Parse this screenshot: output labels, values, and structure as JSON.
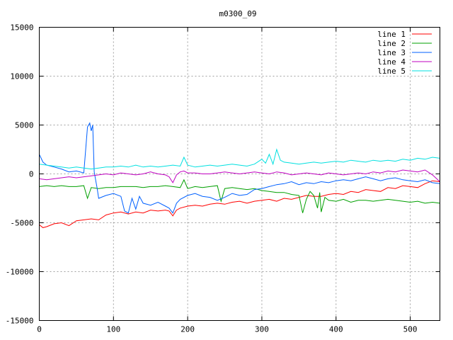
{
  "chart_data": {
    "type": "line",
    "title": "m0300_09",
    "xlabel": "",
    "ylabel": "",
    "xlim": [
      0,
      540
    ],
    "ylim": [
      -15000,
      15000
    ],
    "x_ticks": [
      0,
      100,
      200,
      300,
      400,
      500
    ],
    "y_ticks": [
      -15000,
      -10000,
      -5000,
      0,
      5000,
      10000,
      15000
    ],
    "grid": true,
    "legend_position": "top-right",
    "series": [
      {
        "name": "line 1",
        "color": "#ff0000",
        "points": [
          [
            0,
            -5200
          ],
          [
            5,
            -5500
          ],
          [
            10,
            -5400
          ],
          [
            20,
            -5100
          ],
          [
            30,
            -5000
          ],
          [
            40,
            -5300
          ],
          [
            50,
            -4800
          ],
          [
            60,
            -4700
          ],
          [
            70,
            -4600
          ],
          [
            80,
            -4700
          ],
          [
            90,
            -4200
          ],
          [
            100,
            -4000
          ],
          [
            110,
            -3900
          ],
          [
            120,
            -4100
          ],
          [
            130,
            -3900
          ],
          [
            140,
            -4000
          ],
          [
            150,
            -3700
          ],
          [
            160,
            -3800
          ],
          [
            170,
            -3700
          ],
          [
            175,
            -3800
          ],
          [
            180,
            -4300
          ],
          [
            185,
            -3700
          ],
          [
            190,
            -3500
          ],
          [
            200,
            -3300
          ],
          [
            210,
            -3200
          ],
          [
            220,
            -3300
          ],
          [
            230,
            -3100
          ],
          [
            240,
            -3000
          ],
          [
            250,
            -3100
          ],
          [
            260,
            -2900
          ],
          [
            270,
            -2800
          ],
          [
            280,
            -3000
          ],
          [
            290,
            -2800
          ],
          [
            300,
            -2700
          ],
          [
            310,
            -2600
          ],
          [
            320,
            -2800
          ],
          [
            330,
            -2500
          ],
          [
            340,
            -2600
          ],
          [
            350,
            -2400
          ],
          [
            360,
            -2200
          ],
          [
            370,
            -2300
          ],
          [
            380,
            -2300
          ],
          [
            390,
            -2100
          ],
          [
            400,
            -2000
          ],
          [
            410,
            -2100
          ],
          [
            420,
            -1800
          ],
          [
            430,
            -1900
          ],
          [
            440,
            -1600
          ],
          [
            450,
            -1700
          ],
          [
            460,
            -1800
          ],
          [
            470,
            -1400
          ],
          [
            480,
            -1500
          ],
          [
            490,
            -1200
          ],
          [
            500,
            -1300
          ],
          [
            510,
            -1400
          ],
          [
            520,
            -1000
          ],
          [
            530,
            -700
          ],
          [
            540,
            -800
          ]
        ]
      },
      {
        "name": "line 2",
        "color": "#00a000",
        "points": [
          [
            0,
            -1300
          ],
          [
            10,
            -1200
          ],
          [
            20,
            -1300
          ],
          [
            30,
            -1200
          ],
          [
            40,
            -1300
          ],
          [
            50,
            -1300
          ],
          [
            60,
            -1200
          ],
          [
            65,
            -2500
          ],
          [
            70,
            -1400
          ],
          [
            80,
            -1500
          ],
          [
            90,
            -1400
          ],
          [
            100,
            -1400
          ],
          [
            110,
            -1300
          ],
          [
            120,
            -1300
          ],
          [
            130,
            -1300
          ],
          [
            140,
            -1400
          ],
          [
            150,
            -1300
          ],
          [
            160,
            -1300
          ],
          [
            170,
            -1200
          ],
          [
            180,
            -1300
          ],
          [
            190,
            -1400
          ],
          [
            195,
            -600
          ],
          [
            200,
            -1500
          ],
          [
            210,
            -1300
          ],
          [
            220,
            -1400
          ],
          [
            230,
            -1300
          ],
          [
            240,
            -1200
          ],
          [
            245,
            -2800
          ],
          [
            250,
            -1500
          ],
          [
            260,
            -1400
          ],
          [
            270,
            -1500
          ],
          [
            280,
            -1600
          ],
          [
            290,
            -1500
          ],
          [
            300,
            -1700
          ],
          [
            310,
            -1800
          ],
          [
            320,
            -1900
          ],
          [
            330,
            -1900
          ],
          [
            340,
            -2100
          ],
          [
            350,
            -2200
          ],
          [
            355,
            -4000
          ],
          [
            360,
            -2600
          ],
          [
            365,
            -1800
          ],
          [
            370,
            -2200
          ],
          [
            375,
            -3500
          ],
          [
            378,
            -1900
          ],
          [
            380,
            -3900
          ],
          [
            385,
            -2400
          ],
          [
            390,
            -2700
          ],
          [
            400,
            -2800
          ],
          [
            410,
            -2600
          ],
          [
            420,
            -2900
          ],
          [
            430,
            -2700
          ],
          [
            440,
            -2700
          ],
          [
            450,
            -2800
          ],
          [
            460,
            -2700
          ],
          [
            470,
            -2600
          ],
          [
            480,
            -2700
          ],
          [
            490,
            -2800
          ],
          [
            500,
            -2900
          ],
          [
            510,
            -2800
          ],
          [
            520,
            -3000
          ],
          [
            530,
            -2900
          ],
          [
            540,
            -3000
          ]
        ]
      },
      {
        "name": "line 3",
        "color": "#0060ff",
        "points": [
          [
            0,
            2000
          ],
          [
            5,
            1200
          ],
          [
            10,
            900
          ],
          [
            20,
            700
          ],
          [
            30,
            500
          ],
          [
            40,
            200
          ],
          [
            50,
            300
          ],
          [
            60,
            100
          ],
          [
            65,
            4800
          ],
          [
            68,
            5200
          ],
          [
            70,
            4400
          ],
          [
            72,
            5000
          ],
          [
            74,
            200
          ],
          [
            78,
            -1500
          ],
          [
            80,
            -2500
          ],
          [
            90,
            -2200
          ],
          [
            100,
            -2000
          ],
          [
            110,
            -2300
          ],
          [
            115,
            -3800
          ],
          [
            120,
            -4000
          ],
          [
            125,
            -2500
          ],
          [
            130,
            -3600
          ],
          [
            135,
            -2300
          ],
          [
            140,
            -3000
          ],
          [
            150,
            -3200
          ],
          [
            160,
            -2900
          ],
          [
            170,
            -3300
          ],
          [
            175,
            -3500
          ],
          [
            180,
            -4000
          ],
          [
            185,
            -3000
          ],
          [
            190,
            -2600
          ],
          [
            200,
            -2200
          ],
          [
            210,
            -2000
          ],
          [
            220,
            -2300
          ],
          [
            230,
            -2400
          ],
          [
            240,
            -2700
          ],
          [
            250,
            -2400
          ],
          [
            260,
            -2000
          ],
          [
            270,
            -2200
          ],
          [
            280,
            -2100
          ],
          [
            290,
            -1600
          ],
          [
            300,
            -1500
          ],
          [
            310,
            -1300
          ],
          [
            320,
            -1100
          ],
          [
            330,
            -1000
          ],
          [
            340,
            -800
          ],
          [
            350,
            -1100
          ],
          [
            360,
            -900
          ],
          [
            370,
            -1000
          ],
          [
            380,
            -800
          ],
          [
            390,
            -900
          ],
          [
            400,
            -700
          ],
          [
            410,
            -600
          ],
          [
            420,
            -700
          ],
          [
            430,
            -500
          ],
          [
            440,
            -300
          ],
          [
            450,
            -500
          ],
          [
            460,
            -700
          ],
          [
            470,
            -500
          ],
          [
            480,
            -400
          ],
          [
            490,
            -600
          ],
          [
            500,
            -700
          ],
          [
            510,
            -800
          ],
          [
            520,
            -600
          ],
          [
            530,
            -900
          ],
          [
            540,
            -1000
          ]
        ]
      },
      {
        "name": "line 4",
        "color": "#c000c0",
        "points": [
          [
            0,
            -500
          ],
          [
            10,
            -600
          ],
          [
            20,
            -500
          ],
          [
            30,
            -400
          ],
          [
            40,
            -300
          ],
          [
            50,
            -400
          ],
          [
            60,
            -300
          ],
          [
            70,
            -200
          ],
          [
            80,
            -100
          ],
          [
            90,
            0
          ],
          [
            100,
            -100
          ],
          [
            110,
            100
          ],
          [
            120,
            0
          ],
          [
            130,
            -100
          ],
          [
            140,
            0
          ],
          [
            150,
            200
          ],
          [
            160,
            0
          ],
          [
            170,
            -100
          ],
          [
            175,
            -300
          ],
          [
            180,
            -900
          ],
          [
            185,
            -100
          ],
          [
            190,
            200
          ],
          [
            195,
            300
          ],
          [
            200,
            100
          ],
          [
            210,
            100
          ],
          [
            220,
            0
          ],
          [
            230,
            0
          ],
          [
            240,
            100
          ],
          [
            250,
            200
          ],
          [
            260,
            100
          ],
          [
            270,
            0
          ],
          [
            280,
            100
          ],
          [
            290,
            200
          ],
          [
            300,
            100
          ],
          [
            310,
            0
          ],
          [
            320,
            200
          ],
          [
            330,
            100
          ],
          [
            340,
            -100
          ],
          [
            350,
            0
          ],
          [
            360,
            100
          ],
          [
            370,
            0
          ],
          [
            380,
            -100
          ],
          [
            390,
            100
          ],
          [
            400,
            0
          ],
          [
            410,
            -100
          ],
          [
            420,
            0
          ],
          [
            430,
            100
          ],
          [
            440,
            0
          ],
          [
            450,
            200
          ],
          [
            460,
            100
          ],
          [
            470,
            300
          ],
          [
            480,
            200
          ],
          [
            490,
            400
          ],
          [
            500,
            300
          ],
          [
            510,
            200
          ],
          [
            520,
            400
          ],
          [
            530,
            -100
          ],
          [
            540,
            -800
          ]
        ]
      },
      {
        "name": "line 5",
        "color": "#00e0e0",
        "points": [
          [
            0,
            1000
          ],
          [
            10,
            900
          ],
          [
            20,
            800
          ],
          [
            30,
            700
          ],
          [
            40,
            600
          ],
          [
            50,
            700
          ],
          [
            60,
            600
          ],
          [
            70,
            500
          ],
          [
            80,
            600
          ],
          [
            90,
            700
          ],
          [
            100,
            700
          ],
          [
            110,
            800
          ],
          [
            120,
            700
          ],
          [
            130,
            900
          ],
          [
            140,
            700
          ],
          [
            150,
            800
          ],
          [
            160,
            700
          ],
          [
            170,
            800
          ],
          [
            180,
            900
          ],
          [
            190,
            800
          ],
          [
            195,
            1700
          ],
          [
            200,
            900
          ],
          [
            210,
            700
          ],
          [
            220,
            800
          ],
          [
            230,
            900
          ],
          [
            240,
            800
          ],
          [
            250,
            900
          ],
          [
            260,
            1000
          ],
          [
            270,
            900
          ],
          [
            280,
            800
          ],
          [
            290,
            1000
          ],
          [
            300,
            1500
          ],
          [
            305,
            1100
          ],
          [
            310,
            2000
          ],
          [
            315,
            1000
          ],
          [
            320,
            2500
          ],
          [
            325,
            1400
          ],
          [
            330,
            1200
          ],
          [
            340,
            1100
          ],
          [
            350,
            1000
          ],
          [
            360,
            1100
          ],
          [
            370,
            1200
          ],
          [
            380,
            1100
          ],
          [
            390,
            1200
          ],
          [
            400,
            1300
          ],
          [
            410,
            1200
          ],
          [
            420,
            1400
          ],
          [
            430,
            1300
          ],
          [
            440,
            1200
          ],
          [
            450,
            1400
          ],
          [
            460,
            1300
          ],
          [
            470,
            1400
          ],
          [
            480,
            1300
          ],
          [
            490,
            1500
          ],
          [
            500,
            1400
          ],
          [
            510,
            1600
          ],
          [
            520,
            1500
          ],
          [
            530,
            1700
          ],
          [
            540,
            1600
          ]
        ]
      }
    ]
  }
}
